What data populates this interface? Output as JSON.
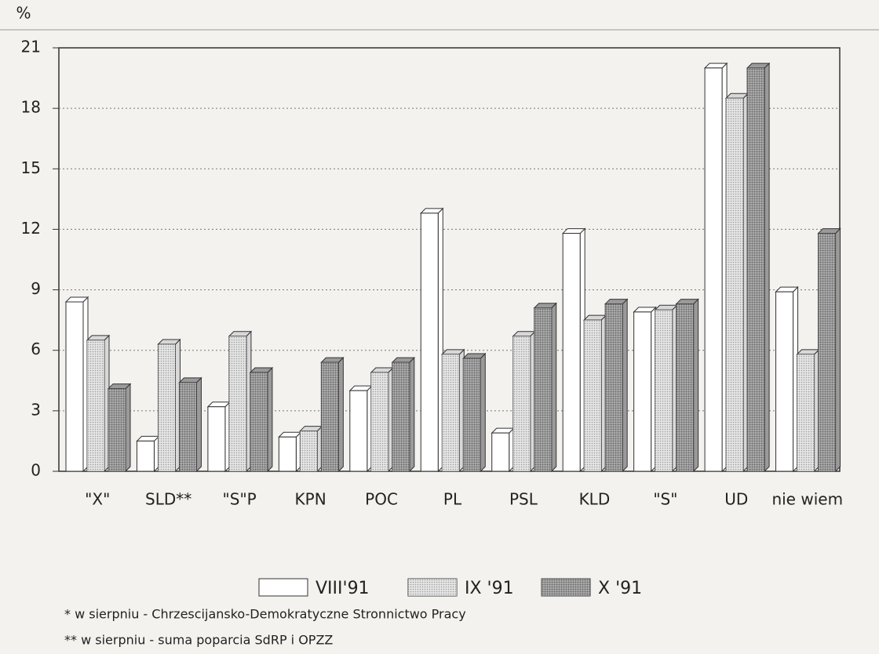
{
  "chart_data": {
    "type": "bar",
    "y_label": "%",
    "categories": [
      "\"X\"",
      "SLD**",
      "\"S\"P",
      "KPN",
      "POC",
      "PL",
      "PSL",
      "KLD",
      "\"S\"",
      "UD",
      "nie wiem"
    ],
    "series": [
      {
        "name": "VIII'91",
        "color": "#ffffff",
        "values": [
          8.4,
          1.5,
          3.2,
          1.7,
          4.0,
          12.8,
          1.9,
          11.8,
          7.9,
          20.0,
          8.9
        ]
      },
      {
        "name": "IX '91",
        "color": "#d8d8d8",
        "values": [
          6.5,
          6.3,
          6.7,
          2.0,
          4.9,
          5.8,
          6.7,
          7.5,
          8.0,
          18.5,
          5.8
        ]
      },
      {
        "name": "X '91",
        "color": "#9a9a9a",
        "values": [
          4.1,
          4.4,
          4.9,
          5.4,
          5.4,
          5.6,
          8.1,
          8.3,
          8.3,
          20.0,
          11.8
        ]
      }
    ],
    "ylim": [
      0,
      21
    ],
    "yticks": [
      0,
      3,
      6,
      9,
      12,
      15,
      18,
      21
    ],
    "grid": true,
    "notes": [
      "* w sierpniu - Chrzescijansko-Demokratyczne Stronnictwo Pracy",
      "** w sierpniu - suma poparcia SdRP i OPZZ"
    ]
  }
}
